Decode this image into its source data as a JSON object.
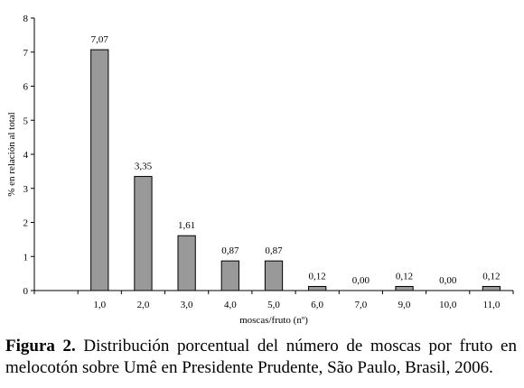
{
  "chart_data": {
    "type": "bar",
    "categories": [
      "1,0",
      "2,0",
      "3,0",
      "4,0",
      "5,0",
      "6,0",
      "7,0",
      "9,0",
      "10,0",
      "11,0"
    ],
    "values": [
      7.07,
      3.35,
      1.61,
      0.87,
      0.87,
      0.12,
      0.0,
      0.12,
      0.0,
      0.12
    ],
    "data_labels": [
      "7,07",
      "3,35",
      "1,61",
      "0,87",
      "0,87",
      "0,12",
      "0,00",
      "0,12",
      "0,00",
      "0,12"
    ],
    "xlabel": "moscas/fruto (nº)",
    "ylabel": "% en relación al total",
    "ylim": [
      0,
      8
    ],
    "yticks": [
      "0",
      "1",
      "2",
      "3",
      "4",
      "5",
      "6",
      "7",
      "8"
    ],
    "bar_color": "#999999",
    "grid": false
  },
  "caption": {
    "label": "Figura 2.",
    "text": " Distribución porcentual del número de moscas por fruto en melocotón sobre Umê en Presidente Prudente, São Paulo, Brasil, 2006."
  }
}
